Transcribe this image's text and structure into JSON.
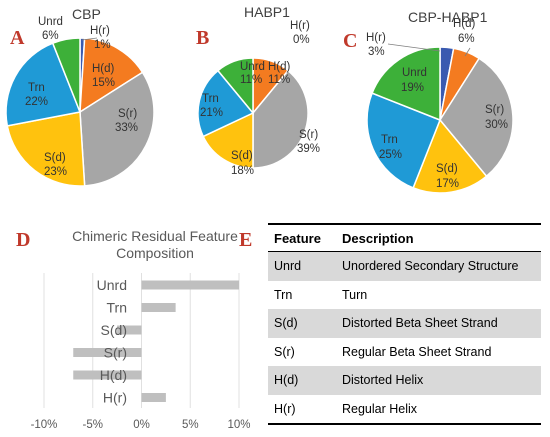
{
  "panels": {
    "A": "A",
    "B": "B",
    "C": "C",
    "D": "D",
    "E": "E"
  },
  "colors": {
    "Unrd": "#3db039",
    "H(d)": "#f47b20",
    "S(r)": "#a6a6a6",
    "S(d)": "#ffc20e",
    "Trn": "#1f9ad6",
    "H(r)": "#3a5ab0"
  },
  "chart_data": [
    {
      "type": "pie",
      "title": "CBP",
      "slices": [
        {
          "name": "H(r)",
          "value": 1,
          "label": "1%"
        },
        {
          "name": "H(d)",
          "value": 15,
          "label": "15%"
        },
        {
          "name": "S(r)",
          "value": 33,
          "label": "33%"
        },
        {
          "name": "S(d)",
          "value": 23,
          "label": "23%"
        },
        {
          "name": "Trn",
          "value": 22,
          "label": "22%"
        },
        {
          "name": "Unrd",
          "value": 6,
          "label": "6%"
        }
      ]
    },
    {
      "type": "pie",
      "title": "HABP1",
      "slices": [
        {
          "name": "H(r)",
          "value": 0,
          "label": "0%"
        },
        {
          "name": "H(d)",
          "value": 11,
          "label": "11%"
        },
        {
          "name": "S(r)",
          "value": 39,
          "label": "39%"
        },
        {
          "name": "S(d)",
          "value": 18,
          "label": "18%"
        },
        {
          "name": "Trn",
          "value": 21,
          "label": "21%"
        },
        {
          "name": "Unrd",
          "value": 11,
          "label": "11%"
        }
      ]
    },
    {
      "type": "pie",
      "title": "CBP-HABP1",
      "slices": [
        {
          "name": "H(r)",
          "value": 3,
          "label": "3%"
        },
        {
          "name": "H(d)",
          "value": 6,
          "label": "6%"
        },
        {
          "name": "S(r)",
          "value": 30,
          "label": "30%"
        },
        {
          "name": "S(d)",
          "value": 17,
          "label": "17%"
        },
        {
          "name": "Trn",
          "value": 25,
          "label": "25%"
        },
        {
          "name": "Unrd",
          "value": 19,
          "label": "19%"
        }
      ]
    },
    {
      "type": "bar",
      "orientation": "horizontal",
      "title": "Chimeric Residual Feature Composition",
      "categories": [
        "Unrd",
        "Trn",
        "S(d)",
        "S(r)",
        "H(d)",
        "H(r)"
      ],
      "values": [
        10,
        3.5,
        -2.5,
        -7,
        -7,
        2.5
      ],
      "xlim": [
        -10,
        10
      ],
      "xticks": [
        "-10%",
        "-5%",
        "0%",
        "5%",
        "10%"
      ],
      "grid": true,
      "bar_color": "#bfbfbf"
    },
    {
      "type": "table",
      "columns": [
        "Feature",
        "Description"
      ],
      "rows": [
        [
          "Unrd",
          "Unordered Secondary Structure"
        ],
        [
          "Trn",
          "Turn"
        ],
        [
          "S(d)",
          "Distorted Beta Sheet Strand"
        ],
        [
          "S(r)",
          "Regular Beta Sheet Strand"
        ],
        [
          "H(d)",
          "Distorted Helix"
        ],
        [
          "H(r)",
          "Regular Helix"
        ]
      ]
    }
  ]
}
